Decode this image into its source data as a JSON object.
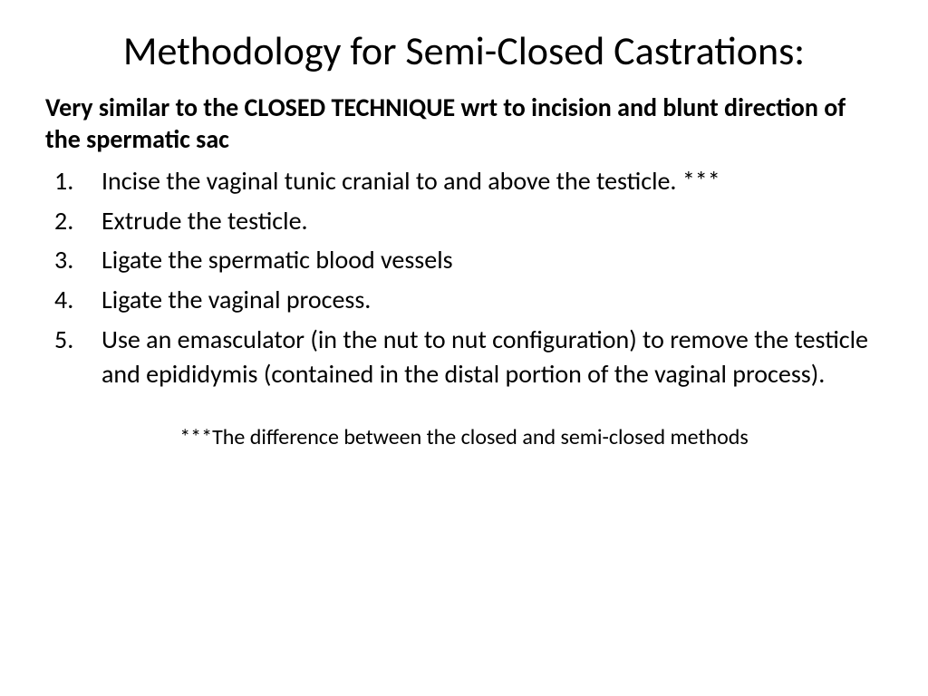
{
  "slide": {
    "title": "Methodology for Semi-Closed Castrations:",
    "intro": "Very similar to the CLOSED TECHNIQUE wrt to incision and blunt direction of the spermatic sac",
    "steps": [
      "Incise the vaginal tunic cranial to and above the testicle. ***",
      "Extrude the testicle.",
      "Ligate the spermatic blood vessels",
      "Ligate the vaginal process.",
      "Use an emasculator (in the nut to nut configuration) to remove the testicle and epididymis (contained in the distal portion of the vaginal process)."
    ],
    "footnote": "***The difference between the closed and semi-closed methods"
  },
  "style": {
    "background_color": "#ffffff",
    "text_color": "#000000",
    "title_fontsize": 44,
    "intro_fontsize": 28,
    "step_fontsize": 28,
    "footnote_fontsize": 24,
    "font_family": "Calibri"
  }
}
